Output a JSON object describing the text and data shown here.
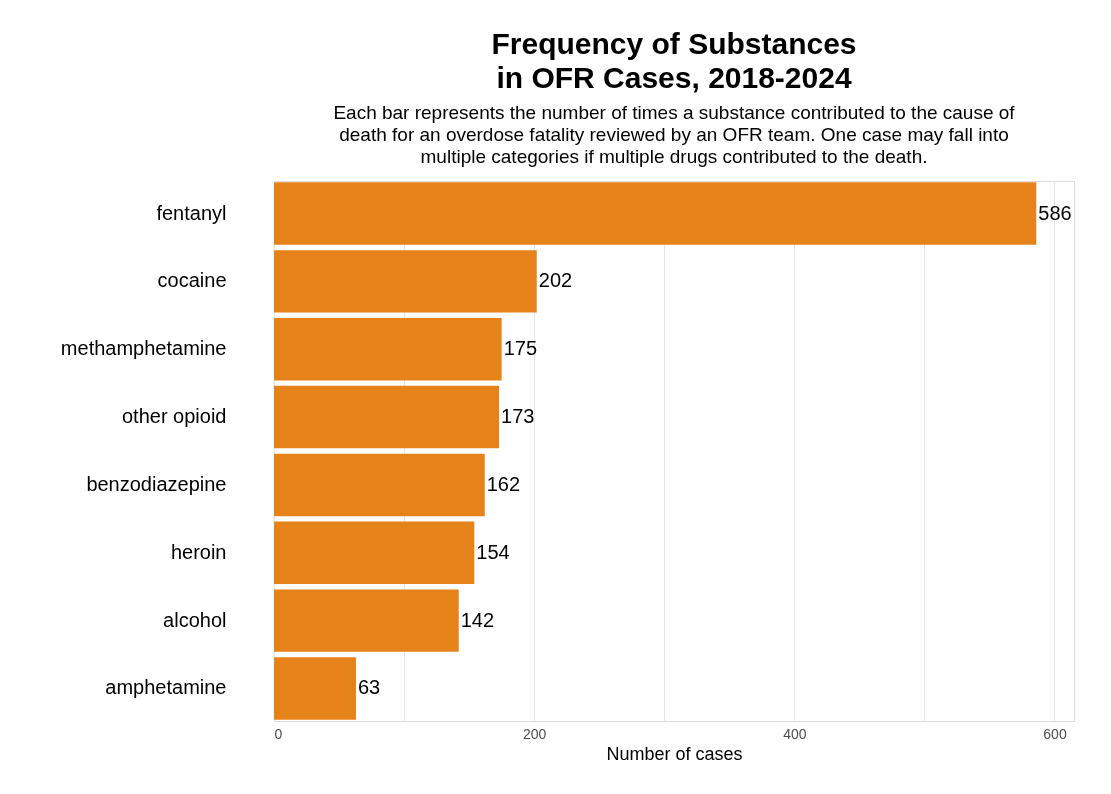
{
  "chart_data": {
    "type": "bar",
    "orientation": "horizontal",
    "title": "Frequency of Substances\nin OFR Cases, 2018-2024",
    "subtitle": "Each bar represents the number of times a substance contributed to the cause of\ndeath for an overdose fatality reviewed by an OFR team. One case may fall into\nmultiple categories if multiple drugs contributed to the death.",
    "xlabel": "Number of cases",
    "categories": [
      "fentanyl",
      "cocaine",
      "methamphetamine",
      "other opioid",
      "benzodiazepine",
      "heroin",
      "alcohol",
      "amphetamine"
    ],
    "values": [
      586,
      202,
      175,
      173,
      162,
      154,
      142,
      63
    ],
    "color": "#e6821a",
    "data_labels": true,
    "xlim": [
      0,
      615
    ],
    "xticks": [
      0,
      {
        "value": 100,
        "label": null
      },
      200,
      {
        "value": 300,
        "label": null
      },
      400,
      {
        "value": 500,
        "label": null
      },
      600
    ],
    "grid": "x"
  }
}
